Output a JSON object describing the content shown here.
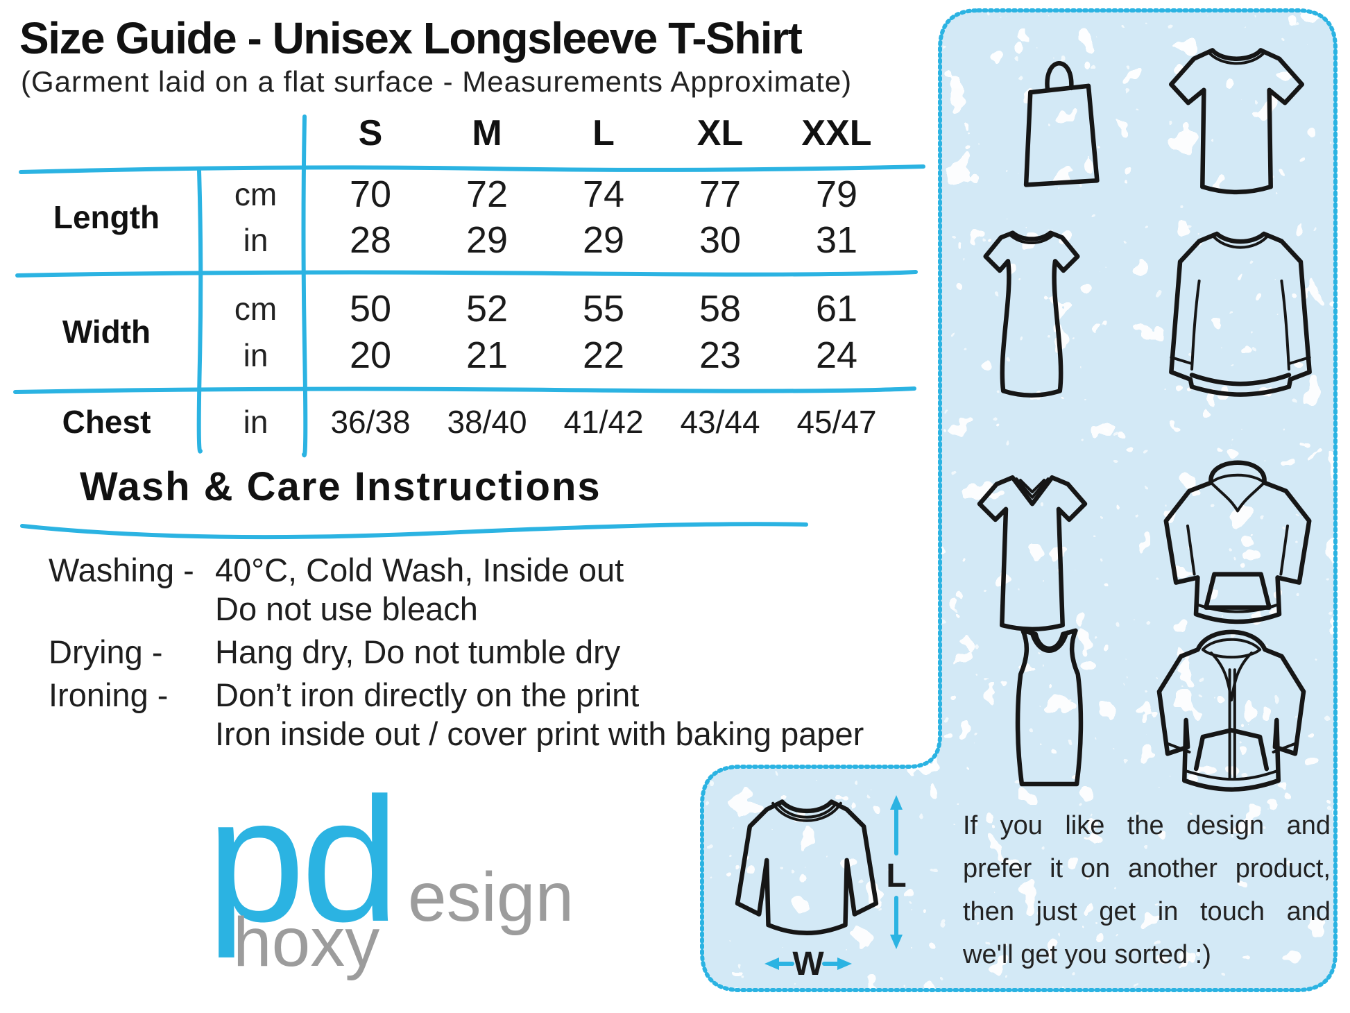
{
  "colors": {
    "accent": "#2bb3e2",
    "panel_bg": "#d3e9f6",
    "ink": "#1c1c1c",
    "logo_gray": "#9c9c9c"
  },
  "title": "Size Guide - Unisex Longsleeve T-Shirt",
  "subtitle": "(Garment laid on a flat surface - Measurements Approximate)",
  "size_table": {
    "sizes": [
      "S",
      "M",
      "L",
      "XL",
      "XXL"
    ],
    "rows": [
      {
        "label": "Length",
        "unit": "cm",
        "values": [
          "70",
          "72",
          "74",
          "77",
          "79"
        ]
      },
      {
        "label": "Length",
        "unit": "in",
        "values": [
          "28",
          "29",
          "29",
          "30",
          "31"
        ]
      },
      {
        "label": "Width",
        "unit": "cm",
        "values": [
          "50",
          "52",
          "55",
          "58",
          "61"
        ]
      },
      {
        "label": "Width",
        "unit": "in",
        "values": [
          "20",
          "21",
          "22",
          "23",
          "24"
        ]
      },
      {
        "label": "Chest",
        "unit": "in",
        "values": [
          "36/38",
          "38/40",
          "41/42",
          "43/44",
          "45/47"
        ]
      }
    ]
  },
  "care": {
    "heading": "Wash & Care Instructions",
    "lines": [
      {
        "label": "Washing -",
        "text": "40°C, Cold Wash, Inside out"
      },
      {
        "label": "",
        "text": "Do not use bleach"
      },
      {
        "label": "Drying -",
        "text": "Hang dry, Do not tumble dry"
      },
      {
        "label": "Ironing -",
        "text": "Don’t iron directly on the print"
      },
      {
        "label": "",
        "text": "Iron inside out / cover print with baking paper"
      }
    ]
  },
  "logo": {
    "main": "pd",
    "design_suffix": "esign",
    "phoxy_suffix": "hoxy"
  },
  "panel": {
    "garments": [
      "tote-bag",
      "t-shirt",
      "womens-t-shirt",
      "sweatshirt",
      "v-neck-t-shirt",
      "hoodie",
      "tank-top",
      "zip-hoodie"
    ],
    "measure": {
      "garment": "longsleeve-t-shirt",
      "length_label": "L",
      "width_label": "W"
    },
    "note_lines": [
      "If you like the design and",
      "prefer it on another product,",
      "then just get in touch and",
      "we'll get you sorted :)"
    ]
  }
}
